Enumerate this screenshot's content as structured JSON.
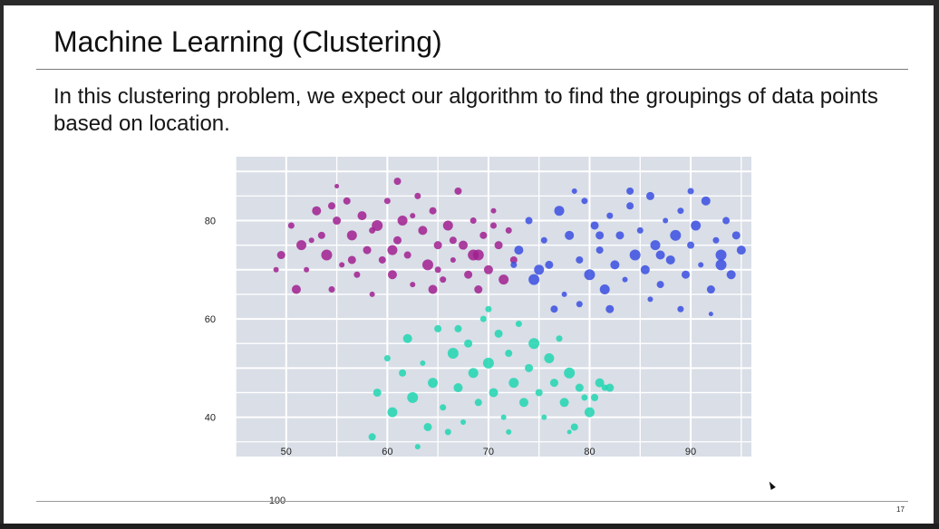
{
  "slide": {
    "title": "Machine Learning (Clustering)",
    "body": "In this clustering problem, we expect our algorithm to find the groupings of data points based on location.",
    "slide_number": "17"
  },
  "colors": {
    "plot_background": "#d9dee7",
    "grid": "#ffffff",
    "purple_cluster": "#a0208f",
    "blue_cluster": "#3a4fe0",
    "teal_cluster": "#20d6b0"
  },
  "chart_data": {
    "type": "scatter",
    "title": "",
    "xlabel": "",
    "ylabel": "",
    "xlim": [
      45,
      96
    ],
    "ylim": [
      32,
      93
    ],
    "x_ticks": [
      50,
      60,
      70,
      80,
      90,
      100
    ],
    "x_tick_labels": [
      "50",
      "60",
      "70",
      "80",
      "90",
      "100"
    ],
    "y_ticks": [
      40,
      60,
      80
    ],
    "y_tick_labels": [
      "40",
      "60",
      "80"
    ],
    "grid": true,
    "legend": "none",
    "series": [
      {
        "color": "#a0208f",
        "points": [
          [
            49.5,
            73
          ],
          [
            50.5,
            79
          ],
          [
            51.5,
            75
          ],
          [
            52,
            70
          ],
          [
            53,
            82
          ],
          [
            53.5,
            77
          ],
          [
            54,
            73
          ],
          [
            54.5,
            66
          ],
          [
            55,
            80
          ],
          [
            55.5,
            71
          ],
          [
            56,
            84
          ],
          [
            56.5,
            77
          ],
          [
            57,
            69
          ],
          [
            57.5,
            81
          ],
          [
            58,
            74
          ],
          [
            58.5,
            65
          ],
          [
            59,
            79
          ],
          [
            59.5,
            72
          ],
          [
            60,
            84
          ],
          [
            60.5,
            69
          ],
          [
            61,
            76
          ],
          [
            61.5,
            80
          ],
          [
            62,
            73
          ],
          [
            62.5,
            67
          ],
          [
            63,
            85
          ],
          [
            63.5,
            78
          ],
          [
            64,
            71
          ],
          [
            64.5,
            82
          ],
          [
            65,
            75
          ],
          [
            65.5,
            68
          ],
          [
            66,
            79
          ],
          [
            66.5,
            72
          ],
          [
            67,
            86
          ],
          [
            67.5,
            75
          ],
          [
            68,
            69
          ],
          [
            68.5,
            80
          ],
          [
            69,
            73
          ],
          [
            69.5,
            77
          ],
          [
            70,
            70
          ],
          [
            70.5,
            82
          ],
          [
            71,
            75
          ],
          [
            71.5,
            68
          ],
          [
            72,
            78
          ],
          [
            72.5,
            72
          ],
          [
            51,
            66
          ],
          [
            52.5,
            76
          ],
          [
            54.5,
            83
          ],
          [
            56.5,
            72
          ],
          [
            58.5,
            78
          ],
          [
            60.5,
            74
          ],
          [
            62.5,
            81
          ],
          [
            64.5,
            66
          ],
          [
            66.5,
            76
          ],
          [
            68.5,
            73
          ],
          [
            70.5,
            79
          ],
          [
            49,
            70
          ],
          [
            55,
            87
          ],
          [
            61,
            88
          ],
          [
            65,
            70
          ],
          [
            69,
            66
          ]
        ],
        "sizes": [
          9,
          7,
          11,
          6,
          10,
          8,
          12,
          7,
          9,
          6,
          8,
          11,
          7,
          10,
          9,
          6,
          12,
          8,
          7,
          10,
          9,
          11,
          8,
          6,
          7,
          10,
          12,
          8,
          9,
          7,
          11,
          6,
          8,
          10,
          9,
          7,
          12,
          8,
          10,
          6,
          9,
          11,
          7,
          8,
          10,
          6,
          8,
          9,
          7,
          11,
          6,
          10,
          8,
          12,
          7,
          6,
          5,
          8,
          7,
          9
        ]
      },
      {
        "color": "#3a4fe0",
        "points": [
          [
            73,
            74
          ],
          [
            74,
            80
          ],
          [
            74.5,
            68
          ],
          [
            75.5,
            76
          ],
          [
            76,
            71
          ],
          [
            77,
            82
          ],
          [
            77.5,
            65
          ],
          [
            78,
            77
          ],
          [
            79,
            72
          ],
          [
            79.5,
            84
          ],
          [
            80,
            69
          ],
          [
            80.5,
            79
          ],
          [
            81,
            74
          ],
          [
            81.5,
            66
          ],
          [
            82,
            81
          ],
          [
            82.5,
            71
          ],
          [
            83,
            77
          ],
          [
            83.5,
            68
          ],
          [
            84,
            83
          ],
          [
            84.5,
            73
          ],
          [
            85,
            78
          ],
          [
            85.5,
            70
          ],
          [
            86,
            85
          ],
          [
            86.5,
            75
          ],
          [
            87,
            67
          ],
          [
            87.5,
            80
          ],
          [
            88,
            72
          ],
          [
            88.5,
            77
          ],
          [
            89,
            82
          ],
          [
            89.5,
            69
          ],
          [
            90,
            75
          ],
          [
            90.5,
            79
          ],
          [
            91,
            71
          ],
          [
            91.5,
            84
          ],
          [
            92,
            66
          ],
          [
            92.5,
            76
          ],
          [
            93,
            73
          ],
          [
            93.5,
            80
          ],
          [
            94,
            69
          ],
          [
            94.5,
            77
          ],
          [
            76.5,
            62
          ],
          [
            79,
            63
          ],
          [
            82,
            62
          ],
          [
            86,
            64
          ],
          [
            89,
            62
          ],
          [
            92,
            61
          ],
          [
            95,
            74
          ],
          [
            78.5,
            86
          ],
          [
            84,
            86
          ],
          [
            90,
            86
          ],
          [
            75,
            70
          ],
          [
            81,
            77
          ],
          [
            87,
            73
          ],
          [
            93,
            71
          ],
          [
            72.5,
            71
          ]
        ],
        "sizes": [
          10,
          8,
          12,
          7,
          9,
          11,
          6,
          10,
          8,
          7,
          12,
          9,
          8,
          11,
          7,
          10,
          9,
          6,
          8,
          12,
          7,
          10,
          9,
          11,
          8,
          6,
          10,
          12,
          7,
          9,
          8,
          11,
          6,
          10,
          9,
          7,
          12,
          8,
          10,
          9,
          8,
          7,
          9,
          6,
          7,
          5,
          10,
          6,
          8,
          7,
          11,
          9,
          10,
          12,
          7
        ]
      },
      {
        "color": "#20d6b0",
        "points": [
          [
            59,
            45
          ],
          [
            60,
            52
          ],
          [
            60.5,
            41
          ],
          [
            61.5,
            49
          ],
          [
            62,
            56
          ],
          [
            62.5,
            44
          ],
          [
            63.5,
            51
          ],
          [
            64,
            38
          ],
          [
            64.5,
            47
          ],
          [
            65,
            58
          ],
          [
            65.5,
            42
          ],
          [
            66.5,
            53
          ],
          [
            67,
            46
          ],
          [
            67.5,
            39
          ],
          [
            68,
            55
          ],
          [
            68.5,
            49
          ],
          [
            69,
            43
          ],
          [
            69.5,
            60
          ],
          [
            70,
            51
          ],
          [
            70.5,
            45
          ],
          [
            71,
            57
          ],
          [
            71.5,
            40
          ],
          [
            72,
            53
          ],
          [
            72.5,
            47
          ],
          [
            73,
            59
          ],
          [
            73.5,
            43
          ],
          [
            74,
            50
          ],
          [
            74.5,
            55
          ],
          [
            75,
            45
          ],
          [
            75.5,
            40
          ],
          [
            76,
            52
          ],
          [
            76.5,
            47
          ],
          [
            77,
            56
          ],
          [
            77.5,
            43
          ],
          [
            78,
            49
          ],
          [
            78.5,
            38
          ],
          [
            79,
            46
          ],
          [
            79.5,
            44
          ],
          [
            80,
            41
          ],
          [
            80.5,
            44
          ],
          [
            81,
            47
          ],
          [
            81.5,
            46
          ],
          [
            82,
            46
          ],
          [
            58.5,
            36
          ],
          [
            63,
            34
          ],
          [
            66,
            37
          ],
          [
            72,
            37
          ],
          [
            78,
            37
          ],
          [
            70,
            62
          ],
          [
            67,
            58
          ]
        ],
        "sizes": [
          9,
          7,
          11,
          8,
          10,
          12,
          6,
          9,
          11,
          8,
          7,
          12,
          10,
          6,
          9,
          11,
          8,
          7,
          12,
          10,
          9,
          6,
          8,
          11,
          7,
          10,
          9,
          12,
          8,
          6,
          11,
          9,
          7,
          10,
          12,
          8,
          9,
          7,
          11,
          8,
          10,
          7,
          9,
          8,
          6,
          7,
          6,
          5,
          7,
          8
        ]
      }
    ]
  }
}
